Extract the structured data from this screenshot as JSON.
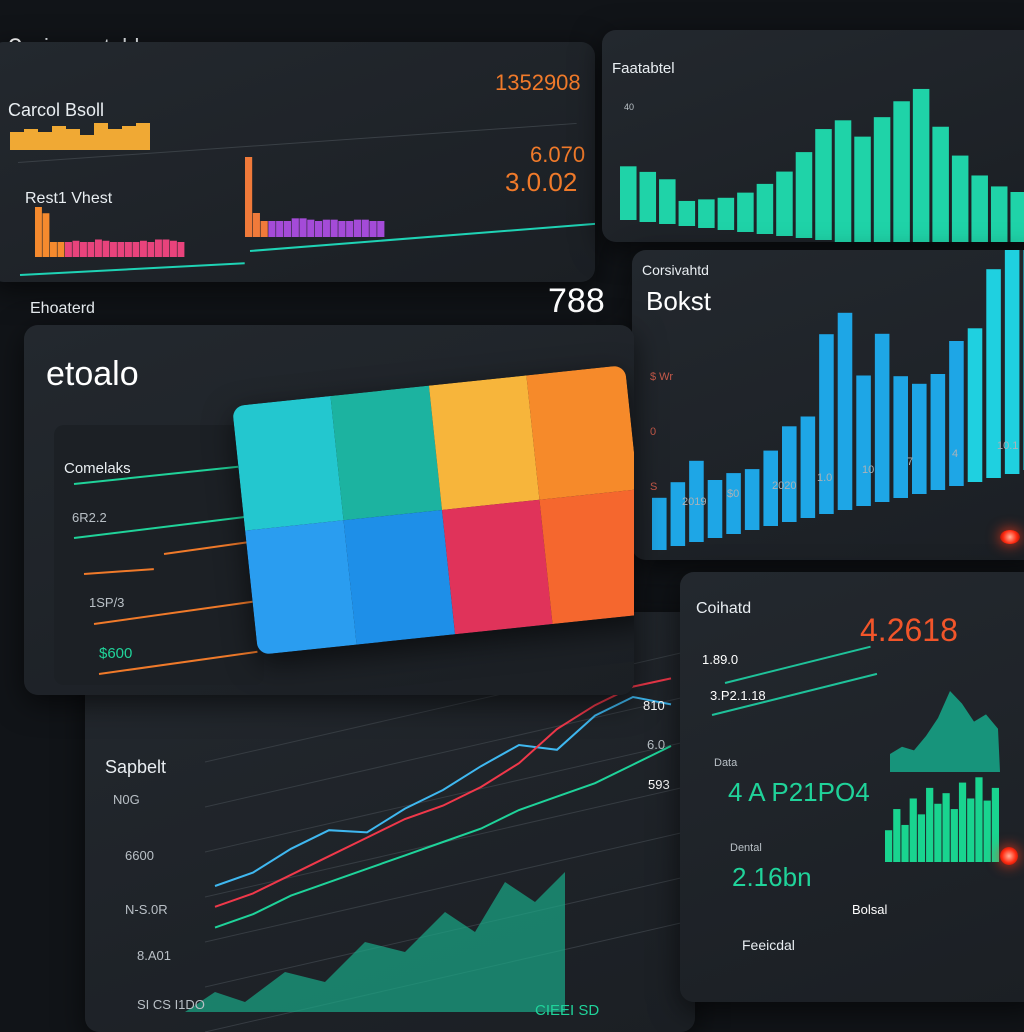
{
  "header": {
    "logo_icon": "e-logo-icon",
    "title": "insaretelda"
  },
  "top_panel": {
    "label1": "Carcol Bsoll",
    "value1": "1352908",
    "label2": "Rest1 Vhest",
    "value2": "6.070",
    "value3": "3.0.02",
    "bars_a": [
      6,
      7,
      6,
      8,
      7,
      5,
      9,
      7,
      8,
      9
    ],
    "bars_b": [
      40,
      35,
      12,
      12,
      12,
      13,
      12,
      12,
      14,
      13,
      12,
      12,
      12,
      12,
      13,
      12,
      14,
      14,
      13,
      12
    ],
    "bars_c": [
      60,
      18,
      12,
      12,
      12,
      12,
      14,
      14,
      13,
      12,
      13,
      13,
      12,
      12,
      13,
      13,
      12,
      12
    ]
  },
  "top_right": {
    "title": "Faatabtel",
    "tick": "40",
    "bars": [
      30,
      28,
      25,
      14,
      16,
      18,
      22,
      28,
      36,
      48,
      62,
      68,
      60,
      72,
      82,
      90,
      70,
      55,
      45,
      40,
      38
    ],
    "color": "#1fd3a8"
  },
  "section": {
    "label": "Ehoaterd",
    "value": "788"
  },
  "card": {
    "title": "etoalo",
    "items": [
      {
        "label": "Comelaks",
        "color": "#20d39a"
      },
      {
        "label": "6R2.2",
        "color": "#20d39a"
      },
      {
        "label": "1SP/3",
        "color": "#f07a2a"
      },
      {
        "label": "$600",
        "color": "#f07a2a"
      }
    ],
    "tiles": [
      "#23c7cf",
      "#1cb3a0",
      "#f7b53b",
      "#f68a2a",
      "#2a9df0",
      "#1e8fe8",
      "#e0335a",
      "#f5672e"
    ]
  },
  "bar_panel": {
    "subtitle": "Corsivahtd",
    "title": "Bokst",
    "y_ticks": [
      "S",
      "0",
      "$ Wr"
    ],
    "x_ticks": [
      "2019",
      "$0",
      "2020",
      "1.0",
      "10",
      "7",
      "4",
      "10.1"
    ],
    "values": [
      18,
      22,
      28,
      20,
      21,
      21,
      26,
      33,
      35,
      62,
      68,
      45,
      58,
      42,
      38,
      40,
      50,
      53,
      72,
      90,
      84
    ],
    "color": "#1eb8e6"
  },
  "line_panel": {
    "title": "Sapbelt",
    "y_labels": [
      "N0G",
      "6600",
      "N-S.0R",
      "8.A01",
      "SI CS I1DO"
    ],
    "right_labels": [
      "810",
      "6.0",
      "593"
    ],
    "footer": "CIEEI SD",
    "series": [
      {
        "color": "#3fb8f0",
        "values": [
          10,
          14,
          22,
          28,
          26,
          34,
          40,
          48,
          55,
          52,
          64,
          70,
          66
        ]
      },
      {
        "color": "#f0384a",
        "values": [
          2,
          6,
          12,
          18,
          24,
          30,
          34,
          40,
          48,
          60,
          68,
          74,
          76
        ]
      },
      {
        "color": "#1fd39a",
        "values": [
          -6,
          -2,
          4,
          8,
          12,
          16,
          20,
          24,
          30,
          34,
          38,
          44,
          50
        ]
      }
    ]
  },
  "right_panel": {
    "title": "Coihatd",
    "value_orange": "4.2618",
    "row1": "1.89.0",
    "row2": "3.P2.1.18",
    "label3": "Data",
    "value_green": "4 A P21PO4",
    "label4": "Dental",
    "value_green2": "2.16bn",
    "label5": "Bolsal",
    "label6": "Feeicdal",
    "area": [
      10,
      14,
      12,
      20,
      30,
      45,
      38,
      28,
      32,
      24
    ],
    "bars": [
      30,
      50,
      35,
      60,
      45,
      70,
      55,
      65,
      50,
      75,
      60,
      80,
      58,
      70
    ]
  }
}
